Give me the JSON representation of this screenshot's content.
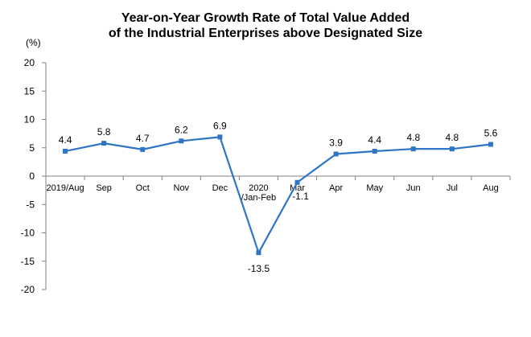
{
  "chart_data": {
    "type": "line",
    "title_line1": "Year-on-Year Growth Rate of Total Value Added",
    "title_line2": "of the Industrial Enterprises above Designated Size",
    "ylabel": "(%)",
    "ylim": [
      -20,
      20
    ],
    "yticks": [
      20,
      15,
      10,
      5,
      0,
      -5,
      -10,
      -15,
      -20
    ],
    "categories": [
      "2019/Aug",
      "Sep",
      "Oct",
      "Nov",
      "Dec",
      "2020\n/Jan-Feb",
      "Mar",
      "Apr",
      "May",
      "Jun",
      "Jul",
      "Aug"
    ],
    "values": [
      4.4,
      5.8,
      4.7,
      6.2,
      6.9,
      -13.5,
      -1.1,
      3.9,
      4.4,
      4.8,
      4.8,
      5.6
    ],
    "data_labels": [
      "4.4",
      "5.8",
      "4.7",
      "6.2",
      "6.9",
      "-13.5",
      "-1.1",
      "3.9",
      "4.4",
      "4.8",
      "4.8",
      "5.6"
    ],
    "series_color": "#2E75C6",
    "grid": false,
    "legend": "none"
  }
}
